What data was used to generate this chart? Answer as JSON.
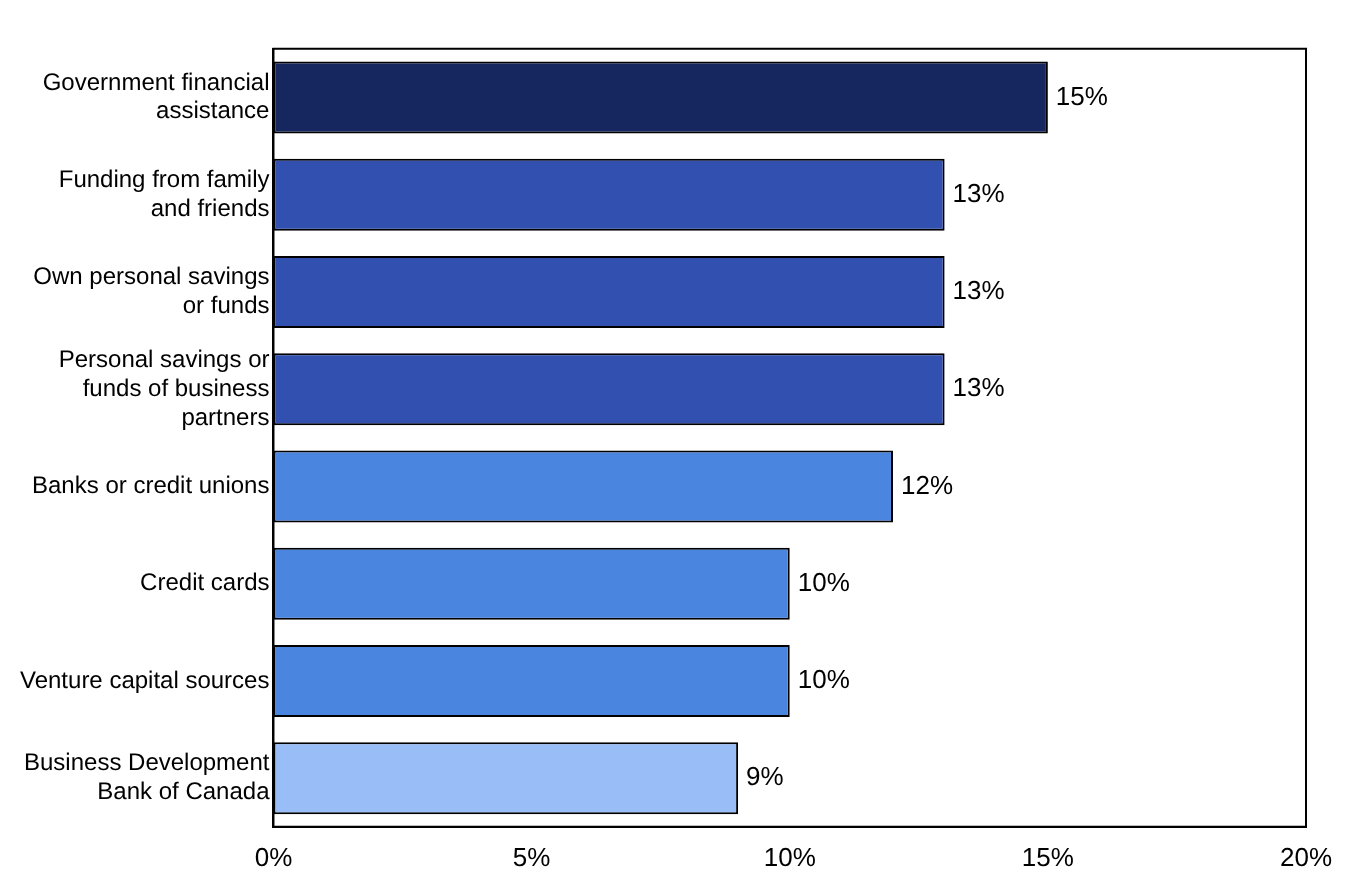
{
  "chart_data": {
    "type": "bar",
    "orientation": "horizontal",
    "categories": [
      "Government financial\nassistance",
      "Funding from family\nand friends",
      "Own personal savings\nor funds",
      "Personal savings or\nfunds of business\npartners",
      "Banks or credit unions",
      "Credit cards",
      "Venture capital sources",
      "Business Development\nBank of Canada"
    ],
    "values": [
      15,
      13,
      13,
      13,
      12,
      10,
      10,
      9
    ],
    "colors": [
      "#15275e",
      "#3150b0",
      "#3150b0",
      "#3150b0",
      "#4a86e0",
      "#4a86e0",
      "#4a86e0",
      "#99bdf7"
    ],
    "value_labels": [
      "15%",
      "13%",
      "13%",
      "13%",
      "12%",
      "10%",
      "10%",
      "9%"
    ],
    "xlim": [
      0,
      20
    ],
    "xticks": [
      {
        "value": 0,
        "label": "0%"
      },
      {
        "value": 5,
        "label": "5%"
      },
      {
        "value": 10,
        "label": "10%"
      },
      {
        "value": 15,
        "label": "15%"
      },
      {
        "value": 20,
        "label": "20%"
      }
    ],
    "grid": false,
    "legend": false
  }
}
